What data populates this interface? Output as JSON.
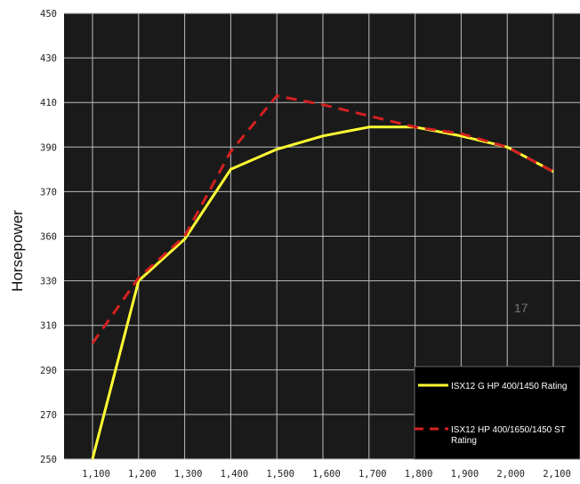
{
  "chart_data": {
    "type": "line",
    "ylabel": "Horsepower",
    "xlabel": "",
    "x_ticks": [
      "1,100",
      "1,200",
      "1,300",
      "1,400",
      "1,500",
      "1,600",
      "1,700",
      "1,800",
      "1,900",
      "2,000",
      "2,100"
    ],
    "y_ticks": [
      "250",
      "270",
      "290",
      "310",
      "330",
      "360",
      "370",
      "390",
      "410",
      "430",
      "450"
    ],
    "xlim": [
      1050,
      2100
    ],
    "grid": true,
    "legend_position": "bottom-right",
    "annotation": "17",
    "series": [
      {
        "name": "ISX12 G HP 400/1450 Rating",
        "color": "#ffff33",
        "style": "solid",
        "points": [
          [
            1100,
            250
          ],
          [
            1150,
            290
          ],
          [
            1200,
            330
          ],
          [
            1300,
            358
          ],
          [
            1400,
            380
          ],
          [
            1500,
            389
          ],
          [
            1600,
            395
          ],
          [
            1700,
            399
          ],
          [
            1800,
            399
          ],
          [
            1900,
            395
          ],
          [
            2000,
            390
          ],
          [
            2100,
            379
          ]
        ]
      },
      {
        "name": "ISX12 HP 400/1650/1450 ST Rating",
        "color": "#d42020",
        "style": "dashed",
        "points": [
          [
            1100,
            302
          ],
          [
            1200,
            332
          ],
          [
            1300,
            360
          ],
          [
            1400,
            388
          ],
          [
            1500,
            413
          ],
          [
            1600,
            409
          ],
          [
            1700,
            404
          ],
          [
            1800,
            399
          ],
          [
            1900,
            396
          ],
          [
            2000,
            390
          ],
          [
            2100,
            379
          ]
        ]
      }
    ]
  },
  "colors": {
    "plot_bg": "#1a1a1a",
    "grid": "#bdbdbd"
  }
}
